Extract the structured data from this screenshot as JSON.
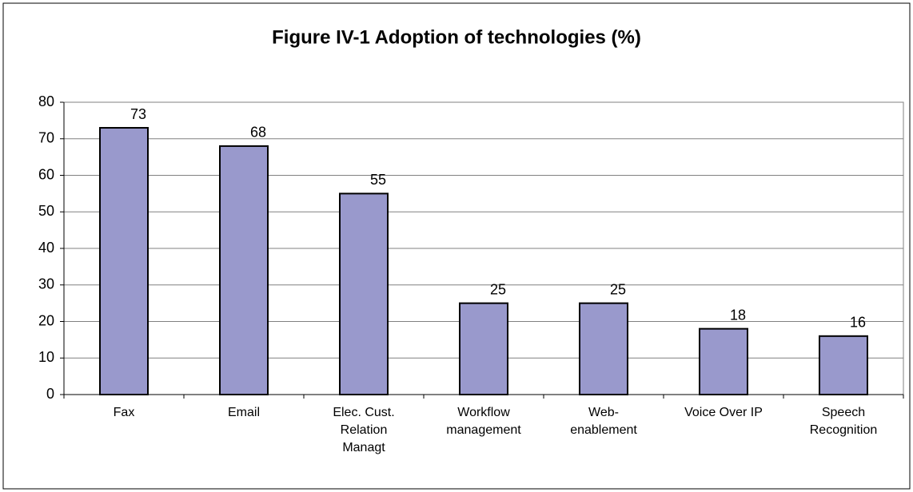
{
  "chart_data": {
    "type": "bar",
    "title": "Figure IV-1 Adoption of technologies (%)",
    "categories": [
      "Fax",
      "Email",
      "Elec. Cust. Relation Managt",
      "Workflow management",
      "Web-enablement",
      "Voice Over IP",
      "Speech Recognition"
    ],
    "values": [
      73,
      68,
      55,
      25,
      25,
      18,
      16
    ],
    "color": "#9999cc",
    "ylim": [
      0,
      80
    ],
    "yticks": [
      0,
      10,
      20,
      30,
      40,
      50,
      60,
      70,
      80
    ],
    "grid": true
  }
}
